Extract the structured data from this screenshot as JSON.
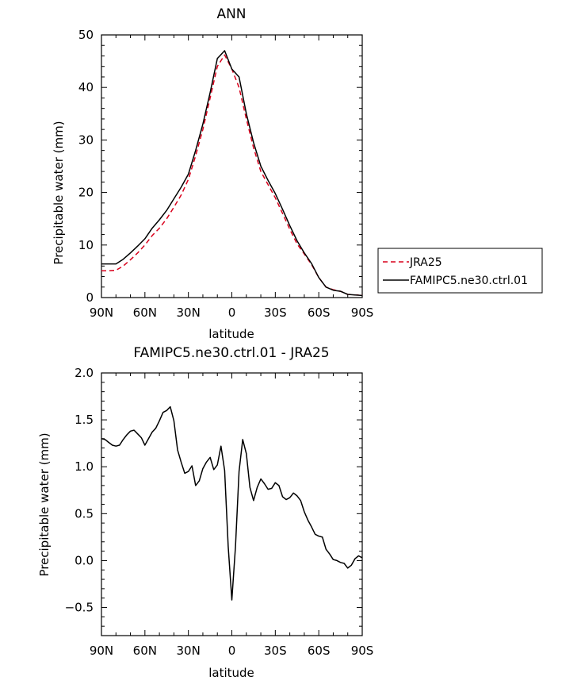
{
  "chart_data": [
    {
      "type": "line",
      "title": "ANN",
      "xlabel": "latitude",
      "ylabel": "Precipitable water (mm)",
      "xlim": [
        90,
        -90
      ],
      "ylim": [
        0,
        50
      ],
      "xticks": [
        90,
        60,
        30,
        0,
        -30,
        -60,
        -90
      ],
      "xtick_labels": [
        "90N",
        "60N",
        "30N",
        "0",
        "30S",
        "60S",
        "90S"
      ],
      "yticks": [
        0,
        10,
        20,
        30,
        40,
        50
      ],
      "ytick_labels": [
        "0",
        "10",
        "20",
        "30",
        "40",
        "50"
      ],
      "grid": false,
      "legend_position": "right",
      "x": [
        90,
        85,
        80,
        75,
        70,
        65,
        60,
        55,
        50,
        45,
        40,
        35,
        30,
        25,
        20,
        15,
        10,
        5,
        0,
        -5,
        -10,
        -15,
        -20,
        -25,
        -30,
        -35,
        -40,
        -45,
        -50,
        -55,
        -60,
        -65,
        -70,
        -75,
        -80,
        -85,
        -90
      ],
      "series": [
        {
          "name": "JRA25",
          "color": "#d9001b",
          "dash": "dashed",
          "values": [
            5.1,
            5.1,
            5.2,
            6.0,
            7.2,
            8.5,
            10.0,
            11.8,
            13.2,
            15.0,
            17.2,
            19.5,
            22.5,
            27.0,
            32.0,
            38.0,
            44.0,
            46.2,
            43.5,
            40.0,
            34.0,
            28.5,
            24.0,
            21.5,
            19.0,
            16.0,
            13.0,
            10.2,
            8.3,
            6.3,
            3.8,
            2.0,
            1.5,
            1.2,
            0.6,
            0.5,
            0.5
          ]
        },
        {
          "name": "FAMIPC5.ne30.ctrl.01",
          "color": "#000000",
          "dash": "solid",
          "values": [
            6.4,
            6.4,
            6.4,
            7.3,
            8.5,
            9.8,
            11.2,
            13.2,
            14.8,
            16.6,
            18.8,
            21.0,
            23.5,
            28.0,
            33.0,
            39.0,
            45.5,
            47.0,
            43.5,
            42.0,
            35.0,
            29.5,
            25.0,
            22.3,
            19.8,
            16.8,
            13.7,
            10.8,
            8.5,
            6.5,
            3.8,
            2.0,
            1.4,
            1.2,
            0.6,
            0.5,
            0.4
          ]
        }
      ]
    },
    {
      "type": "line",
      "title": "FAMIPC5.ne30.ctrl.01 - JRA25",
      "xlabel": "latitude",
      "ylabel": "Precipitable water (mm)",
      "xlim": [
        90,
        -90
      ],
      "ylim": [
        -0.8,
        2.0
      ],
      "xticks": [
        90,
        60,
        30,
        0,
        -30,
        -60,
        -90
      ],
      "xtick_labels": [
        "90N",
        "60N",
        "30N",
        "0",
        "30S",
        "60S",
        "90S"
      ],
      "yticks": [
        -0.5,
        0.0,
        0.5,
        1.0,
        1.5,
        2.0
      ],
      "ytick_labels": [
        "−0.5",
        "0.0",
        "0.5",
        "1.0",
        "1.5",
        "2.0"
      ],
      "grid": false,
      "x": [
        90,
        87.5,
        85,
        82.5,
        80,
        77.5,
        75,
        72.5,
        70,
        67.5,
        65,
        62.5,
        60,
        57.5,
        55,
        52.5,
        50,
        47.5,
        45,
        42.5,
        40,
        37.5,
        35,
        32.5,
        30,
        27.5,
        25,
        22.5,
        20,
        17.5,
        15,
        12.5,
        10,
        7.5,
        5,
        2.5,
        0,
        -2.5,
        -5,
        -7.5,
        -10,
        -12.5,
        -15,
        -17.5,
        -20,
        -22.5,
        -25,
        -27.5,
        -30,
        -32.5,
        -35,
        -37.5,
        -40,
        -42.5,
        -45,
        -47.5,
        -50,
        -52.5,
        -55,
        -57.5,
        -60,
        -62.5,
        -65,
        -67.5,
        -70,
        -72.5,
        -75,
        -77.5,
        -80,
        -82.5,
        -85,
        -87.5,
        -90
      ],
      "series": [
        {
          "name": "FAMIPC5.ne30.ctrl.01 - JRA25",
          "color": "#000000",
          "values": [
            1.3,
            1.29,
            1.26,
            1.23,
            1.22,
            1.23,
            1.29,
            1.34,
            1.38,
            1.39,
            1.35,
            1.31,
            1.23,
            1.3,
            1.37,
            1.41,
            1.49,
            1.58,
            1.6,
            1.64,
            1.49,
            1.18,
            1.05,
            0.93,
            0.95,
            1.01,
            0.8,
            0.85,
            0.98,
            1.05,
            1.1,
            0.97,
            1.02,
            1.22,
            0.96,
            0.15,
            -0.42,
            0.15,
            0.95,
            1.29,
            1.14,
            0.78,
            0.64,
            0.78,
            0.87,
            0.82,
            0.76,
            0.77,
            0.83,
            0.8,
            0.68,
            0.65,
            0.67,
            0.72,
            0.69,
            0.64,
            0.52,
            0.43,
            0.36,
            0.28,
            0.26,
            0.25,
            0.12,
            0.07,
            0.01,
            0.0,
            -0.02,
            -0.03,
            -0.08,
            -0.05,
            0.02,
            0.05,
            0.03
          ]
        }
      ]
    }
  ]
}
